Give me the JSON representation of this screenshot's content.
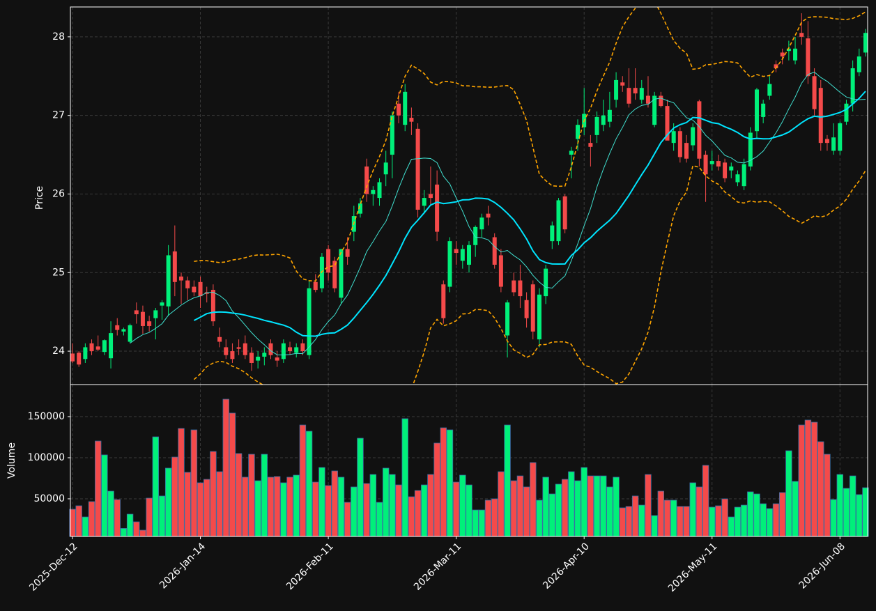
{
  "chart_data": {
    "type": "candlestick",
    "ylabel": "Price",
    "volume_ylabel": "Volume",
    "ylim": [
      23.575,
      28.38
    ],
    "yticks": [
      24,
      25,
      26,
      27,
      28
    ],
    "volume_ylim": [
      4200,
      189000
    ],
    "volume_yticks": [
      50000,
      100000,
      150000
    ],
    "grid": true,
    "up_color": "#00f07a",
    "down_color": "#f44a4a",
    "volume_edge_color": "#3a6ea5",
    "mav": [
      10,
      20
    ],
    "mav_colors": [
      "#40e0d0",
      "#00e5ff"
    ],
    "mav_widths": [
      1,
      2
    ],
    "bollinger": {
      "period": 20,
      "std": 2,
      "color": "#ffa500"
    },
    "categories": [
      "2025-Dec-12",
      null,
      null,
      null,
      null,
      null,
      null,
      null,
      null,
      null,
      null,
      null,
      null,
      null,
      null,
      null,
      null,
      null,
      null,
      null,
      "2026-Jan-14",
      null,
      null,
      null,
      null,
      null,
      null,
      null,
      null,
      null,
      null,
      null,
      null,
      null,
      null,
      null,
      null,
      null,
      null,
      null,
      "2026-Feb-11",
      null,
      null,
      null,
      null,
      null,
      null,
      null,
      null,
      null,
      null,
      null,
      null,
      null,
      null,
      null,
      null,
      null,
      null,
      null,
      "2026-Mar-11",
      null,
      null,
      null,
      null,
      null,
      null,
      null,
      null,
      null,
      null,
      null,
      null,
      null,
      null,
      null,
      null,
      null,
      null,
      null,
      "2026-Apr-10",
      null,
      null,
      null,
      null,
      null,
      null,
      null,
      null,
      null,
      null,
      null,
      null,
      null,
      null,
      null,
      null,
      null,
      null,
      null,
      "2026-May-11",
      null,
      null,
      null,
      null,
      null,
      null,
      null,
      null,
      null,
      null,
      null,
      null,
      null,
      null,
      null,
      null,
      null,
      null,
      null,
      "2026-Jun-08",
      null,
      null,
      null,
      null
    ],
    "open": [
      23.97,
      23.98,
      23.9,
      24.1,
      24.06,
      23.99,
      23.91,
      24.33,
      24.25,
      24.12,
      24.52,
      24.5,
      24.38,
      24.42,
      24.58,
      24.57,
      25.27,
      24.95,
      24.9,
      24.82,
      24.88,
      24.75,
      24.78,
      24.18,
      24.05,
      24.0,
      24.05,
      24.1,
      23.98,
      23.88,
      23.93,
      24.1,
      23.92,
      23.9,
      24.05,
      23.98,
      24.1,
      23.95,
      24.88,
      24.8,
      25.3,
      25.15,
      24.68,
      25.3,
      25.52,
      25.75,
      26.35,
      26.0,
      25.95,
      26.25,
      26.5,
      27.15,
      26.88,
      26.97,
      26.83,
      25.85,
      26.0,
      26.12,
      24.85,
      24.82,
      25.3,
      25.15,
      25.1,
      25.35,
      25.55,
      25.75,
      25.45,
      25.22,
      24.2,
      24.9,
      24.9,
      24.65,
      24.85,
      24.15,
      24.7,
      25.4,
      25.4,
      25.97,
      26.5,
      26.7,
      26.85,
      26.65,
      26.75,
      26.88,
      26.92,
      27.2,
      27.42,
      27.35,
      27.35,
      27.2,
      27.25,
      26.88,
      27.25,
      27.12,
      26.65,
      26.8,
      26.65,
      26.62,
      27.18,
      26.5,
      26.38,
      26.42,
      26.4,
      26.3,
      26.15,
      26.1,
      26.35,
      26.8,
      26.98,
      27.25,
      27.65,
      27.8,
      27.82,
      27.7,
      28.05,
      27.98,
      27.5,
      27.35,
      26.7,
      26.55,
      26.55,
      26.92,
      27.15,
      27.55,
      27.8
    ],
    "high": [
      24.1,
      24.0,
      24.1,
      24.15,
      24.2,
      24.15,
      24.38,
      24.42,
      24.3,
      24.35,
      24.62,
      24.58,
      24.45,
      24.55,
      24.65,
      25.35,
      25.6,
      25.0,
      24.95,
      24.9,
      24.95,
      24.82,
      24.85,
      24.3,
      24.15,
      24.1,
      24.15,
      24.2,
      24.05,
      24.0,
      24.05,
      24.15,
      24.0,
      24.15,
      24.12,
      24.1,
      24.15,
      24.9,
      24.98,
      25.25,
      25.35,
      25.2,
      25.3,
      25.45,
      25.85,
      25.95,
      26.45,
      26.1,
      26.2,
      26.55,
      27.05,
      27.3,
      27.4,
      27.1,
      26.9,
      26.05,
      26.35,
      26.3,
      24.9,
      25.45,
      25.4,
      25.35,
      25.4,
      25.6,
      25.75,
      25.85,
      25.5,
      25.3,
      24.65,
      25.0,
      25.1,
      24.75,
      24.9,
      24.8,
      25.1,
      25.65,
      25.95,
      26.0,
      26.6,
      26.95,
      27.35,
      26.75,
      27.05,
      27.2,
      27.3,
      27.55,
      27.5,
      27.6,
      27.6,
      27.45,
      27.5,
      27.3,
      27.3,
      27.2,
      26.9,
      26.85,
      26.75,
      26.9,
      27.2,
      26.55,
      26.55,
      26.5,
      26.45,
      26.4,
      26.3,
      26.45,
      26.85,
      27.35,
      27.2,
      27.5,
      27.7,
      27.85,
      27.95,
      28.0,
      28.3,
      28.2,
      27.6,
      27.45,
      26.75,
      26.9,
      26.92,
      27.2,
      27.7,
      27.85,
      28.1
    ],
    "low": [
      23.85,
      23.8,
      23.85,
      23.95,
      24.0,
      23.95,
      23.78,
      24.2,
      24.2,
      24.1,
      24.35,
      24.22,
      24.25,
      24.15,
      24.4,
      24.45,
      24.7,
      24.6,
      24.65,
      24.7,
      24.55,
      24.62,
      24.32,
      24.05,
      23.9,
      23.85,
      23.95,
      23.9,
      23.75,
      23.78,
      23.82,
      23.9,
      23.8,
      23.85,
      23.95,
      23.92,
      23.95,
      23.9,
      24.75,
      24.75,
      24.9,
      24.75,
      24.6,
      25.1,
      25.4,
      25.7,
      25.9,
      25.85,
      25.85,
      26.1,
      26.2,
      26.9,
      26.8,
      26.75,
      25.7,
      25.75,
      25.85,
      25.4,
      24.35,
      24.75,
      25.1,
      25.05,
      25.0,
      25.2,
      25.45,
      25.6,
      25.05,
      24.75,
      23.92,
      24.7,
      24.55,
      24.3,
      24.15,
      24.05,
      24.6,
      25.3,
      25.35,
      25.5,
      26.2,
      26.55,
      26.75,
      26.35,
      26.65,
      26.8,
      26.85,
      27.1,
      27.3,
      27.1,
      27.2,
      27.15,
      27.1,
      26.85,
      27.1,
      26.7,
      26.55,
      26.4,
      26.4,
      26.55,
      26.35,
      25.9,
      26.3,
      26.3,
      26.15,
      26.2,
      26.1,
      26.05,
      26.3,
      26.7,
      26.9,
      27.2,
      27.55,
      27.65,
      27.7,
      27.65,
      27.9,
      27.4,
      27.0,
      26.55,
      26.55,
      26.5,
      26.5,
      26.88,
      27.05,
      27.5,
      27.75
    ],
    "close": [
      23.87,
      23.83,
      24.05,
      24.0,
      24.02,
      24.14,
      24.23,
      24.27,
      24.28,
      24.33,
      24.47,
      24.32,
      24.32,
      24.52,
      24.62,
      25.22,
      24.88,
      24.9,
      24.8,
      24.75,
      24.7,
      24.73,
      24.38,
      24.12,
      23.95,
      23.9,
      24.03,
      23.95,
      23.85,
      23.93,
      23.98,
      23.95,
      23.88,
      24.1,
      24.0,
      24.05,
      24.0,
      24.8,
      24.78,
      25.2,
      25.0,
      24.8,
      25.3,
      25.2,
      25.72,
      25.88,
      26.0,
      26.05,
      26.15,
      26.4,
      27.0,
      27.0,
      27.3,
      26.92,
      25.8,
      25.95,
      25.95,
      25.52,
      24.42,
      25.4,
      25.25,
      25.3,
      25.35,
      25.58,
      25.7,
      25.7,
      25.1,
      24.82,
      24.62,
      24.75,
      24.7,
      24.42,
      24.25,
      24.72,
      25.05,
      25.6,
      25.92,
      25.55,
      26.55,
      26.88,
      27.02,
      26.6,
      26.98,
      27.0,
      27.07,
      27.45,
      27.38,
      27.15,
      27.28,
      27.35,
      27.15,
      27.25,
      27.12,
      26.68,
      26.8,
      26.47,
      26.45,
      26.85,
      26.45,
      26.25,
      26.42,
      26.35,
      26.2,
      26.35,
      26.25,
      26.38,
      26.78,
      27.33,
      27.15,
      27.4,
      27.6,
      27.75,
      27.85,
      27.85,
      28.0,
      27.5,
      27.08,
      26.65,
      26.65,
      26.72,
      26.9,
      27.15,
      27.6,
      27.75,
      28.05
    ],
    "volume": [
      37300,
      41500,
      27900,
      46600,
      120300,
      103400,
      59300,
      49000,
      14000,
      31300,
      22000,
      11800,
      50800,
      125400,
      53400,
      87300,
      100800,
      135600,
      82200,
      133900,
      69500,
      73700,
      107600,
      83000,
      171200,
      154300,
      105100,
      76300,
      104200,
      72000,
      104200,
      76300,
      77100,
      69500,
      76300,
      78800,
      139800,
      132200,
      70300,
      88100,
      66100,
      83900,
      76300,
      45700,
      64400,
      123700,
      68600,
      79600,
      45700,
      87300,
      79600,
      66900,
      147500,
      52500,
      60100,
      66900,
      79600,
      117800,
      136400,
      133900,
      70300,
      78800,
      66900,
      36400,
      36400,
      48300,
      50000,
      83000,
      139800,
      72000,
      77900,
      64400,
      94100,
      48300,
      76300,
      55900,
      67800,
      73700,
      83000,
      72000,
      88100,
      77900,
      77900,
      77900,
      64400,
      76300,
      39000,
      40700,
      53400,
      42300,
      79600,
      29600,
      59300,
      48300,
      48300,
      40700,
      40700,
      69500,
      64400,
      90700,
      39800,
      41500,
      50000,
      27900,
      39800,
      42300,
      58500,
      55900,
      44000,
      38100,
      44000,
      57600,
      108500,
      71200,
      139800,
      145800,
      143200,
      119500,
      104200,
      49100,
      79600,
      62700,
      77900,
      55100,
      63500
    ]
  }
}
